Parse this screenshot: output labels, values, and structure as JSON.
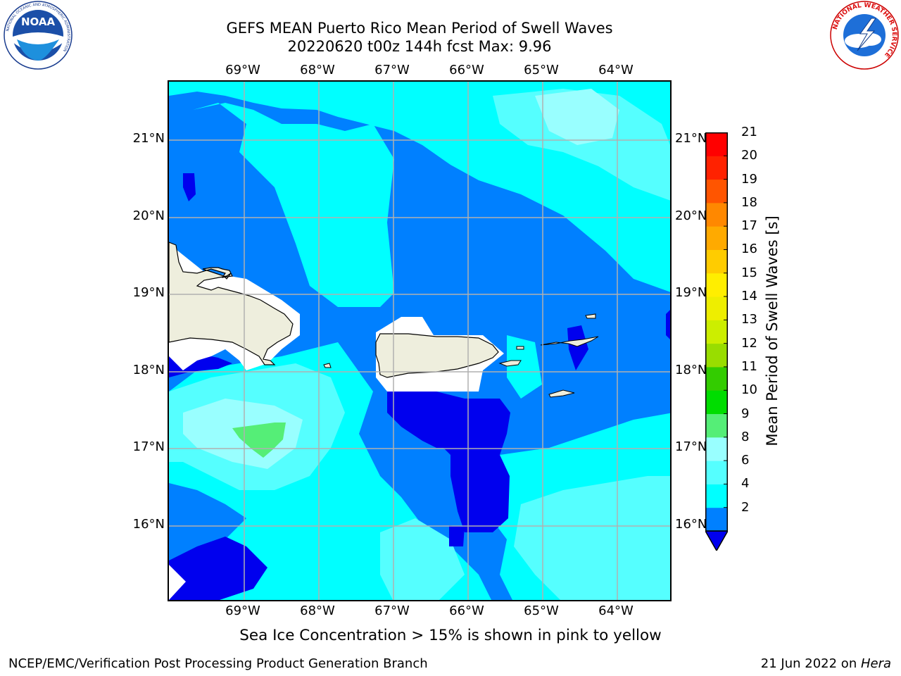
{
  "header": {
    "title_line1": "GEFS MEAN Puerto Rico Mean Period of Swell Waves",
    "title_line2": "20220620 t00z 144h fcst   Max: 9.96"
  },
  "map": {
    "lon_labels": [
      "69°W",
      "68°W",
      "67°W",
      "66°W",
      "65°W",
      "64°W"
    ],
    "lat_labels": [
      "21°N",
      "20°N",
      "19°N",
      "18°N",
      "17°N",
      "16°N"
    ]
  },
  "colorbar": {
    "label": "Mean Period of Swell Waves [s]",
    "ticks": [
      "21",
      "20",
      "19",
      "18",
      "17",
      "16",
      "15",
      "14",
      "13",
      "12",
      "11",
      "10",
      "9",
      "8",
      "6",
      "4",
      "2"
    ],
    "colors": [
      "#0000ee",
      "#0080ff",
      "#00ffff",
      "#55ffff",
      "#99ffff",
      "#55ee77",
      "#00dd00",
      "#33cc00",
      "#99dd00",
      "#ccee00",
      "#eeee00",
      "#ffee00",
      "#ffcc00",
      "#ffaa00",
      "#ff8800",
      "#ff5500",
      "#ff2200",
      "#ff0000"
    ]
  },
  "footer": {
    "note": "Sea Ice Concentration > 15% is shown in pink to yellow",
    "branch": "NCEP/EMC/Verification Post Processing Product Generation Branch",
    "date": "21 Jun 2022 on ",
    "host": "Hera"
  },
  "logos": {
    "noaa_text": "NOAA",
    "noaa_ring": "NATIONAL OCEANIC AND ATMOSPHERIC ADMINISTRATION",
    "noaa_ring_bottom": "U.S. DEPARTMENT OF COMMERCE",
    "nws_ring": "NATIONAL WEATHER SERVICE"
  }
}
